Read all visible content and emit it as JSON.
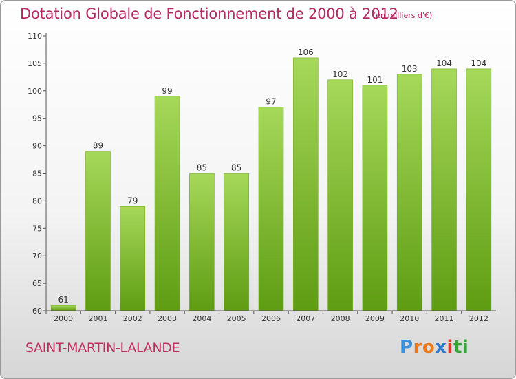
{
  "chart_data": {
    "type": "bar",
    "title": "Dotation Globale de Fonctionnement de 2000 à 2012",
    "subtitle": "(en milliers d'€)",
    "categories": [
      "2000",
      "2001",
      "2002",
      "2003",
      "2004",
      "2005",
      "2006",
      "2007",
      "2008",
      "2009",
      "2010",
      "2011",
      "2012"
    ],
    "values": [
      61,
      89,
      79,
      99,
      85,
      85,
      97,
      106,
      102,
      101,
      103,
      104,
      104
    ],
    "ylim": [
      60,
      110
    ],
    "yticks": [
      60,
      65,
      70,
      75,
      80,
      85,
      90,
      95,
      100,
      105,
      110
    ],
    "grid": false,
    "colors": {
      "bar_top": "#a6d85a",
      "bar_bottom": "#5e9c12",
      "bar_edge": "#6fae1e"
    }
  },
  "commune": "SAINT-MARTIN-LALANDE",
  "logo": {
    "letters": [
      "P",
      "r",
      "o",
      "x",
      "i",
      "t",
      "i"
    ],
    "colors": [
      "#3d8fd8",
      "#e87a1c",
      "#e87a1c",
      "#2d7ad0",
      "#d83a2a",
      "#3aa13a",
      "#3aa13a"
    ]
  }
}
